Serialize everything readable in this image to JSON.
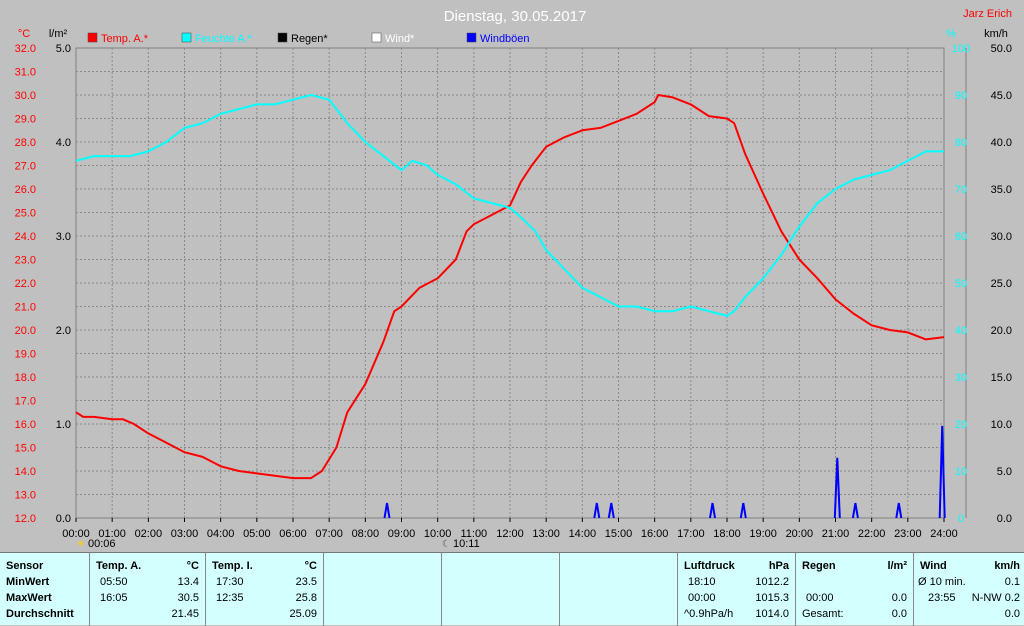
{
  "header": {
    "title": "Dienstag, 30.05.2017",
    "author": "Jarz Erich",
    "unit_left_outer": "°C",
    "unit_left_inner": "l/m²",
    "unit_right_inner": "%",
    "unit_right_outer": "km/h"
  },
  "legend": [
    {
      "label": "Temp. A.*",
      "color": "#ff0000"
    },
    {
      "label": "Feuchte A.*",
      "color": "#00ffff"
    },
    {
      "label": "Regen*",
      "color": "#000000"
    },
    {
      "label": "Wind*",
      "color": "#ffffff"
    },
    {
      "label": "Windböen",
      "color": "#0000ff"
    }
  ],
  "markers": {
    "sunrise_time": "00:06",
    "moon_time": "10:11"
  },
  "chart_data": {
    "type": "line",
    "title": "Dienstag, 30.05.2017",
    "x": {
      "unit": "hours",
      "range": [
        0,
        24
      ],
      "tick_labels": [
        "00:00",
        "01:00",
        "02:00",
        "03:00",
        "04:00",
        "05:00",
        "06:00",
        "07:00",
        "08:00",
        "09:00",
        "10:00",
        "11:00",
        "12:00",
        "13:00",
        "14:00",
        "15:00",
        "16:00",
        "17:00",
        "18:00",
        "19:00",
        "20:00",
        "21:00",
        "22:00",
        "23:00",
        "24:00"
      ]
    },
    "axes": {
      "temperature_c": {
        "range": [
          12.0,
          32.0
        ],
        "ticks": [
          "12.0",
          "13.0",
          "14.0",
          "15.0",
          "16.0",
          "17.0",
          "18.0",
          "19.0",
          "20.0",
          "21.0",
          "22.0",
          "23.0",
          "24.0",
          "25.0",
          "26.0",
          "27.0",
          "28.0",
          "29.0",
          "30.0",
          "31.0",
          "32.0"
        ]
      },
      "rain_lm2": {
        "range": [
          0.0,
          5.0
        ],
        "ticks": [
          "0.0",
          "1.0",
          "2.0",
          "3.0",
          "4.0",
          "5.0"
        ]
      },
      "humidity_pct": {
        "range": [
          0,
          100
        ],
        "ticks": [
          "0",
          "10",
          "20",
          "30",
          "40",
          "50",
          "60",
          "70",
          "80",
          "90",
          "100"
        ]
      },
      "wind_kmh": {
        "range": [
          0.0,
          50.0
        ],
        "ticks": [
          "0.0",
          "5.0",
          "10.0",
          "15.0",
          "20.0",
          "25.0",
          "30.0",
          "35.0",
          "40.0",
          "45.0",
          "50.0"
        ]
      }
    },
    "grid": true,
    "series": [
      {
        "name": "Temp. A.*",
        "color": "#ff0000",
        "axis": "temperature_c",
        "points": [
          [
            0,
            16.5
          ],
          [
            0.2,
            16.3
          ],
          [
            0.5,
            16.3
          ],
          [
            1,
            16.2
          ],
          [
            1.3,
            16.2
          ],
          [
            1.6,
            16.0
          ],
          [
            2,
            15.6
          ],
          [
            2.5,
            15.2
          ],
          [
            3,
            14.8
          ],
          [
            3.5,
            14.6
          ],
          [
            4,
            14.2
          ],
          [
            4.5,
            14.0
          ],
          [
            5,
            13.9
          ],
          [
            5.5,
            13.8
          ],
          [
            6,
            13.7
          ],
          [
            6.5,
            13.7
          ],
          [
            6.8,
            14.0
          ],
          [
            7.2,
            15.0
          ],
          [
            7.5,
            16.5
          ],
          [
            8,
            17.7
          ],
          [
            8.5,
            19.5
          ],
          [
            8.8,
            20.8
          ],
          [
            9,
            21.0
          ],
          [
            9.5,
            21.8
          ],
          [
            10,
            22.2
          ],
          [
            10.5,
            23.0
          ],
          [
            10.8,
            24.2
          ],
          [
            11,
            24.5
          ],
          [
            11.5,
            24.9
          ],
          [
            12,
            25.3
          ],
          [
            12.3,
            26.3
          ],
          [
            12.6,
            27.0
          ],
          [
            13,
            27.8
          ],
          [
            13.5,
            28.2
          ],
          [
            14,
            28.5
          ],
          [
            14.5,
            28.6
          ],
          [
            15,
            28.9
          ],
          [
            15.5,
            29.2
          ],
          [
            16,
            29.7
          ],
          [
            16.1,
            30.0
          ],
          [
            16.5,
            29.9
          ],
          [
            17,
            29.6
          ],
          [
            17.5,
            29.1
          ],
          [
            18,
            29.0
          ],
          [
            18.2,
            28.8
          ],
          [
            18.5,
            27.5
          ],
          [
            19,
            25.8
          ],
          [
            19.5,
            24.2
          ],
          [
            20,
            23.0
          ],
          [
            20.5,
            22.2
          ],
          [
            21,
            21.3
          ],
          [
            21.5,
            20.7
          ],
          [
            22,
            20.2
          ],
          [
            22.5,
            20.0
          ],
          [
            23,
            19.9
          ],
          [
            23.5,
            19.6
          ],
          [
            24,
            19.7
          ]
        ]
      },
      {
        "name": "Feuchte A.*",
        "color": "#00ffff",
        "axis": "humidity_pct",
        "points": [
          [
            0,
            76
          ],
          [
            0.5,
            77
          ],
          [
            1,
            77
          ],
          [
            1.5,
            77
          ],
          [
            2,
            78
          ],
          [
            2.5,
            80
          ],
          [
            3,
            83
          ],
          [
            3.5,
            84
          ],
          [
            4,
            86
          ],
          [
            4.5,
            87
          ],
          [
            5,
            88
          ],
          [
            5.5,
            88
          ],
          [
            6,
            89
          ],
          [
            6.5,
            90
          ],
          [
            7,
            89
          ],
          [
            7.5,
            84
          ],
          [
            8,
            80
          ],
          [
            8.5,
            77
          ],
          [
            9,
            74
          ],
          [
            9.3,
            76
          ],
          [
            9.7,
            75
          ],
          [
            10,
            73
          ],
          [
            10.5,
            71
          ],
          [
            11,
            68
          ],
          [
            11.5,
            67
          ],
          [
            12,
            66
          ],
          [
            12.3,
            64
          ],
          [
            12.7,
            61
          ],
          [
            13,
            57
          ],
          [
            13.5,
            53
          ],
          [
            14,
            49
          ],
          [
            14.5,
            47
          ],
          [
            15,
            45
          ],
          [
            15.5,
            45
          ],
          [
            16,
            44
          ],
          [
            16.5,
            44
          ],
          [
            17,
            45
          ],
          [
            17.5,
            44
          ],
          [
            18,
            43
          ],
          [
            18.2,
            44
          ],
          [
            18.5,
            47
          ],
          [
            19,
            51
          ],
          [
            19.5,
            56
          ],
          [
            20,
            62
          ],
          [
            20.5,
            67
          ],
          [
            21,
            70
          ],
          [
            21.5,
            72
          ],
          [
            22,
            73
          ],
          [
            22.5,
            74
          ],
          [
            23,
            76
          ],
          [
            23.5,
            78
          ],
          [
            24,
            78
          ]
        ]
      },
      {
        "name": "Windböen",
        "color": "#0000ff",
        "axis": "wind_kmh",
        "peaks": [
          [
            8.6,
            1.6
          ],
          [
            14.4,
            1.6
          ],
          [
            14.8,
            1.6
          ],
          [
            17.6,
            1.6
          ],
          [
            18.45,
            1.6
          ],
          [
            21.05,
            6.4
          ],
          [
            21.55,
            1.6
          ],
          [
            22.75,
            1.6
          ],
          [
            23.95,
            9.8
          ]
        ]
      }
    ]
  },
  "stats": {
    "sensor": {
      "header": "Sensor",
      "rows": [
        "MinWert",
        "MaxWert",
        "Durchschnitt"
      ]
    },
    "temp_a": {
      "header": "Temp. A.",
      "unit": "°C",
      "min_time": "05:50",
      "min": "13.4",
      "max_time": "16:05",
      "max": "30.5",
      "avg": "21.45"
    },
    "temp_i": {
      "header": "Temp. I.",
      "unit": "°C",
      "min_time": "17:30",
      "min": "23.5",
      "max_time": "12:35",
      "max": "25.8",
      "avg": "25.09"
    },
    "pressure": {
      "header": "Luftdruck",
      "unit": "hPa",
      "r1_label": "18:10",
      "r1_val": "1012.2",
      "r2_label": "00:00",
      "r2_val": "1015.3",
      "r3_label": "^0.9hPa/h",
      "r3_val": "1014.0"
    },
    "rain": {
      "header": "Regen",
      "unit": "l/m²",
      "r2_label": "00:00",
      "r2_val": "0.0",
      "r3_label": "Gesamt:",
      "r3_val": "0.0"
    },
    "wind": {
      "header": "Wind",
      "unit": "km/h",
      "r1_label": "Ø 10 min.",
      "r1_val": "0.1",
      "r2_label": "23:55",
      "r2_val": "N-NW 0.2",
      "r3_val": "0.0"
    }
  }
}
